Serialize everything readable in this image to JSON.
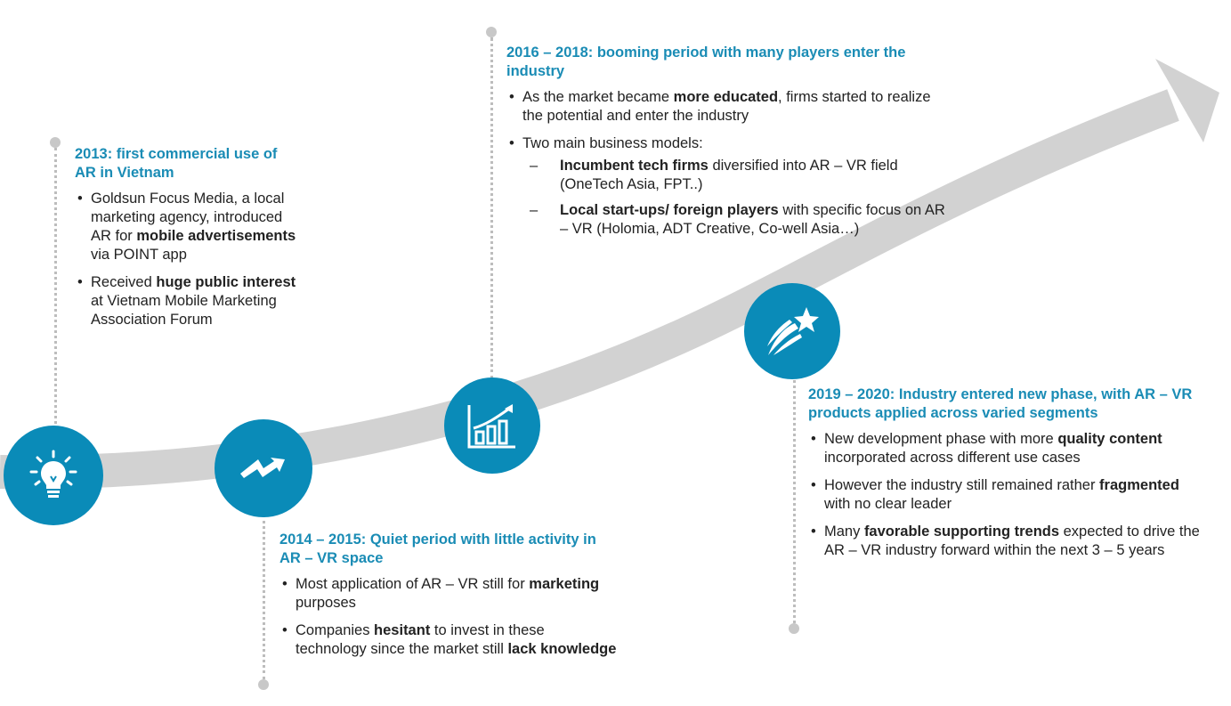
{
  "colors": {
    "accent": "#1a8cb5",
    "node_fill": "#0a8bb8",
    "arrow": "#d2d2d2",
    "dots": "#bdbdbd"
  },
  "milestones": [
    {
      "icon": "lightbulb-icon",
      "title": "2013: first commercial use of AR in Vietnam",
      "bullets": [
        [
          {
            "t": "Goldsun Focus Media, a local marketing agency, introduced AR for ",
            "b": false
          },
          {
            "t": "mobile advertisements",
            "b": true
          },
          {
            "t": " via POINT app",
            "b": false
          }
        ],
        [
          {
            "t": "Received ",
            "b": false
          },
          {
            "t": "huge public interest",
            "b": true
          },
          {
            "t": " at Vietnam Mobile Marketing Association Forum",
            "b": false
          }
        ]
      ]
    },
    {
      "icon": "lightning-icon",
      "title": "2014 – 2015: Quiet period with little activity in AR – VR space",
      "bullets": [
        [
          {
            "t": "Most application of AR – VR still for ",
            "b": false
          },
          {
            "t": "marketing",
            "b": true
          },
          {
            "t": " purposes",
            "b": false
          }
        ],
        [
          {
            "t": "Companies ",
            "b": false
          },
          {
            "t": "hesitant",
            "b": true
          },
          {
            "t": " to invest in these technology since the market still ",
            "b": false
          },
          {
            "t": "lack knowledge",
            "b": true
          }
        ]
      ]
    },
    {
      "icon": "growth-chart-icon",
      "title": "2016 – 2018: booming period with many players enter the industry",
      "bullets": [
        [
          {
            "t": "As the market became ",
            "b": false
          },
          {
            "t": "more educated",
            "b": true
          },
          {
            "t": ", firms started to realize the potential and enter the industry",
            "b": false
          }
        ],
        [
          {
            "t": "Two main business models:",
            "b": false
          }
        ]
      ],
      "sub_bullets": [
        [
          {
            "t": "Incumbent tech firms",
            "b": true
          },
          {
            "t": " diversified into AR – VR field (OneTech Asia, FPT..)",
            "b": false
          }
        ],
        [
          {
            "t": "Local start-ups/ foreign players",
            "b": true
          },
          {
            "t": " with specific focus on AR – VR (Holomia, ADT Creative, Co-well Asia…)",
            "b": false
          }
        ]
      ]
    },
    {
      "icon": "shooting-star-icon",
      "title": "2019 – 2020: Industry entered new phase, with AR – VR products applied across varied segments",
      "bullets": [
        [
          {
            "t": "New development phase with more ",
            "b": false
          },
          {
            "t": "quality content",
            "b": true
          },
          {
            "t": " incorporated across different use cases",
            "b": false
          }
        ],
        [
          {
            "t": "However the industry still remained rather ",
            "b": false
          },
          {
            "t": "fragmented",
            "b": true
          },
          {
            "t": " with no clear leader",
            "b": false
          }
        ],
        [
          {
            "t": "Many ",
            "b": false
          },
          {
            "t": "favorable supporting trends",
            "b": true
          },
          {
            "t": " expected to drive the AR – VR industry forward within the next 3 – 5 years",
            "b": false
          }
        ]
      ]
    }
  ]
}
